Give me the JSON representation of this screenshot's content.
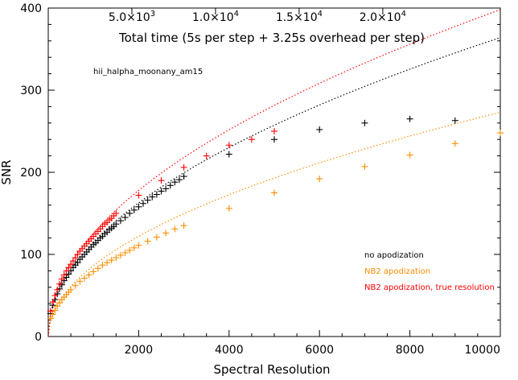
{
  "chart_data": {
    "type": "scatter",
    "ylabel": "SNR",
    "xlabel": "Spectral Resolution",
    "top_axis_label": "Total time (5s per step + 3.25s overhead per step)",
    "top_axis_ticks": [
      {
        "mantissa": "5.0",
        "exp": "3",
        "resolution": 1850
      },
      {
        "mantissa": "1.0",
        "exp": "4",
        "resolution": 3700
      },
      {
        "mantissa": "1.5",
        "exp": "4",
        "resolution": 5550
      },
      {
        "mantissa": "2.0",
        "exp": "4",
        "resolution": 7400
      }
    ],
    "annotation": "hii_halpha_moonany_am15",
    "xlim": [
      0,
      10000
    ],
    "ylim": [
      0,
      400
    ],
    "xticks": [
      2000,
      4000,
      6000,
      8000,
      10000
    ],
    "yticks": [
      0,
      100,
      200,
      300,
      400
    ],
    "grid": false,
    "legend_position": "right",
    "legend": [
      {
        "label": "no apodization",
        "color": "#000000"
      },
      {
        "label": "NB2 apodization",
        "color": "#ff8c00"
      },
      {
        "label": "NB2 apodization, true resolution",
        "color": "#ff0000"
      }
    ],
    "series": [
      {
        "color": "#000000",
        "marker": "plus",
        "points": [
          [
            50,
            28
          ],
          [
            100,
            38
          ],
          [
            150,
            45
          ],
          [
            200,
            52
          ],
          [
            250,
            58
          ],
          [
            300,
            63
          ],
          [
            350,
            68
          ],
          [
            400,
            72
          ],
          [
            450,
            76
          ],
          [
            500,
            80
          ],
          [
            550,
            84
          ],
          [
            600,
            87
          ],
          [
            650,
            90
          ],
          [
            700,
            94
          ],
          [
            750,
            97
          ],
          [
            800,
            100
          ],
          [
            850,
            103
          ],
          [
            900,
            106
          ],
          [
            950,
            109
          ],
          [
            1000,
            112
          ],
          [
            1050,
            114
          ],
          [
            1100,
            117
          ],
          [
            1150,
            120
          ],
          [
            1200,
            122
          ],
          [
            1250,
            125
          ],
          [
            1300,
            127
          ],
          [
            1350,
            130
          ],
          [
            1400,
            132
          ],
          [
            1450,
            134
          ],
          [
            1500,
            137
          ],
          [
            1600,
            141
          ],
          [
            1700,
            145
          ],
          [
            1800,
            150
          ],
          [
            1900,
            154
          ],
          [
            2000,
            158
          ],
          [
            2100,
            162
          ],
          [
            2200,
            166
          ],
          [
            2300,
            170
          ],
          [
            2400,
            173
          ],
          [
            2500,
            177
          ],
          [
            2600,
            180
          ],
          [
            2700,
            184
          ],
          [
            2800,
            188
          ],
          [
            2900,
            191
          ],
          [
            3000,
            195
          ],
          [
            4000,
            222
          ],
          [
            5000,
            240
          ],
          [
            6000,
            252
          ],
          [
            7000,
            260
          ],
          [
            8000,
            265
          ],
          [
            9000,
            263
          ]
        ]
      },
      {
        "color": "#ff8c00",
        "marker": "plus",
        "points": [
          [
            50,
            22
          ],
          [
            100,
            27
          ],
          [
            150,
            32
          ],
          [
            200,
            37
          ],
          [
            250,
            41
          ],
          [
            300,
            45
          ],
          [
            350,
            48
          ],
          [
            400,
            51
          ],
          [
            450,
            54
          ],
          [
            500,
            57
          ],
          [
            600,
            62
          ],
          [
            700,
            67
          ],
          [
            800,
            71
          ],
          [
            900,
            75
          ],
          [
            1000,
            79
          ],
          [
            1100,
            83
          ],
          [
            1200,
            87
          ],
          [
            1300,
            90
          ],
          [
            1400,
            93
          ],
          [
            1500,
            96
          ],
          [
            1600,
            99
          ],
          [
            1700,
            102
          ],
          [
            1800,
            105
          ],
          [
            1900,
            108
          ],
          [
            2000,
            111
          ],
          [
            2200,
            116
          ],
          [
            2400,
            121
          ],
          [
            2600,
            126
          ],
          [
            2800,
            131
          ],
          [
            3000,
            135
          ],
          [
            4000,
            156
          ],
          [
            5000,
            175
          ],
          [
            6000,
            192
          ],
          [
            7000,
            207
          ],
          [
            8000,
            221
          ],
          [
            9000,
            235
          ],
          [
            10000,
            248
          ]
        ]
      },
      {
        "color": "#ff0000",
        "marker": "plus",
        "points": [
          [
            50,
            31
          ],
          [
            100,
            42
          ],
          [
            150,
            50
          ],
          [
            200,
            57
          ],
          [
            250,
            64
          ],
          [
            300,
            70
          ],
          [
            350,
            75
          ],
          [
            400,
            80
          ],
          [
            450,
            84
          ],
          [
            500,
            88
          ],
          [
            550,
            92
          ],
          [
            600,
            96
          ],
          [
            650,
            100
          ],
          [
            700,
            104
          ],
          [
            750,
            107
          ],
          [
            800,
            110
          ],
          [
            850,
            113
          ],
          [
            900,
            116
          ],
          [
            950,
            119
          ],
          [
            1000,
            122
          ],
          [
            1050,
            125
          ],
          [
            1100,
            128
          ],
          [
            1150,
            131
          ],
          [
            1200,
            134
          ],
          [
            1250,
            137
          ],
          [
            1300,
            139
          ],
          [
            1350,
            142
          ],
          [
            1400,
            144
          ],
          [
            1450,
            147
          ],
          [
            1500,
            150
          ],
          [
            2000,
            172
          ],
          [
            2500,
            190
          ],
          [
            3000,
            206
          ],
          [
            3500,
            220
          ],
          [
            4000,
            233
          ],
          [
            4500,
            240
          ],
          [
            5000,
            250
          ]
        ]
      }
    ],
    "fit_curves": [
      {
        "color": "#000000",
        "coef": 3.64,
        "power": 0.5
      },
      {
        "color": "#ff8c00",
        "coef": 2.73,
        "power": 0.5
      },
      {
        "color": "#ff0000",
        "coef": 3.98,
        "power": 0.5
      }
    ]
  }
}
